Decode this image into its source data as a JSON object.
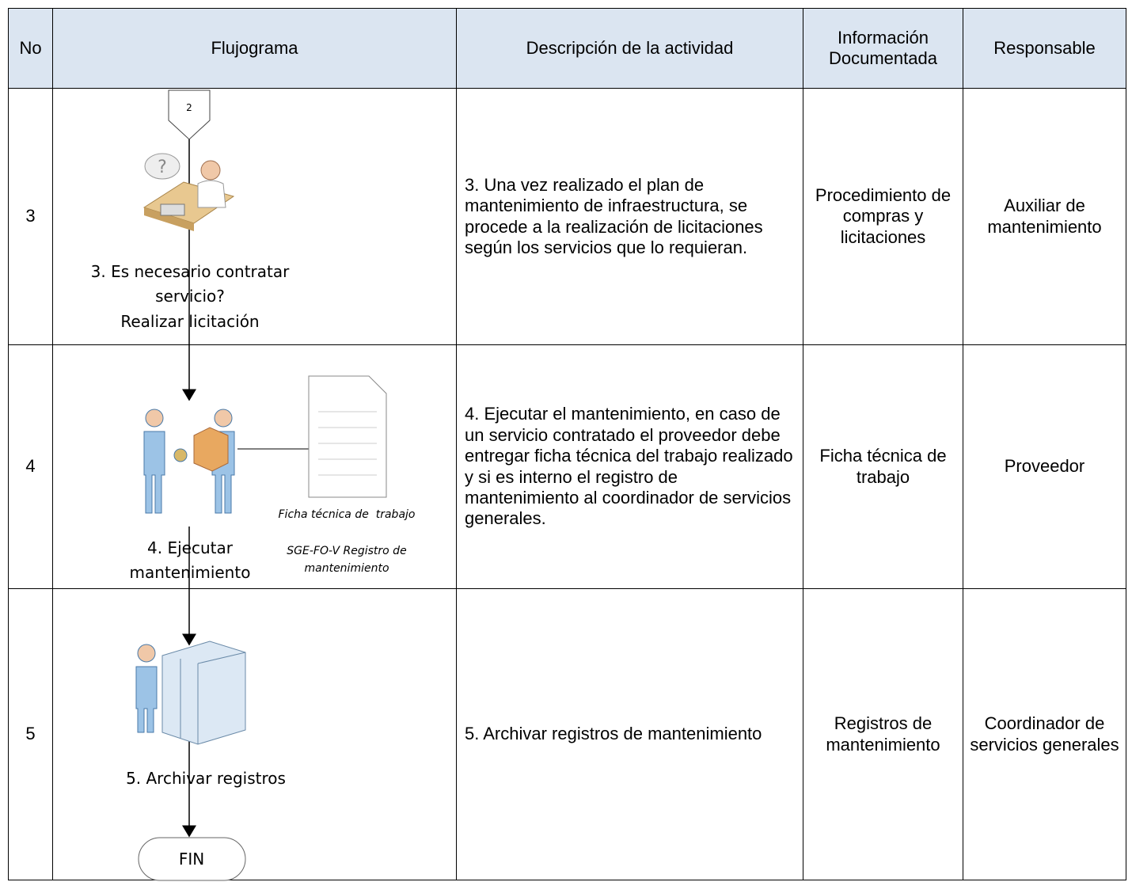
{
  "table": {
    "header": [
      "No",
      "Flujograma",
      "Descripción de la actividad",
      "Información Documentada",
      "Responsable"
    ],
    "rows": [
      {
        "no": "3",
        "flow_label": [
          "3. Es necesario contratar",
          "servicio?",
          "Realizar licitación"
        ],
        "description": "3. Una vez realizado el plan de mantenimiento de infraestructura, se procede a la realización de licitaciones según los servicios que lo requieran.",
        "info": "Procedimiento de compras y licitaciones",
        "responsible": "Auxiliar de mantenimiento"
      },
      {
        "no": "4",
        "flow_label": [
          "4. Ejecutar",
          "mantenimiento"
        ],
        "description": "4. Ejecutar el mantenimiento, en caso de un servicio contratado el proveedor debe entregar ficha técnica del trabajo realizado y si es interno el registro de mantenimiento al coordinador de servicios generales.",
        "info": "Ficha técnica de trabajo",
        "responsible": "Proveedor"
      },
      {
        "no": "5",
        "flow_label": [
          "5. Archivar registros"
        ],
        "description": "5. Archivar registros de mantenimiento",
        "info": "Registros de mantenimiento",
        "responsible": "Coordinador de servicios generales"
      }
    ]
  },
  "flowchart": {
    "connector": "2",
    "doc_labels": [
      "Ficha técnica de  trabajo",
      "SGE-FO-V Registro de",
      "mantenimiento"
    ],
    "end": "FIN"
  }
}
